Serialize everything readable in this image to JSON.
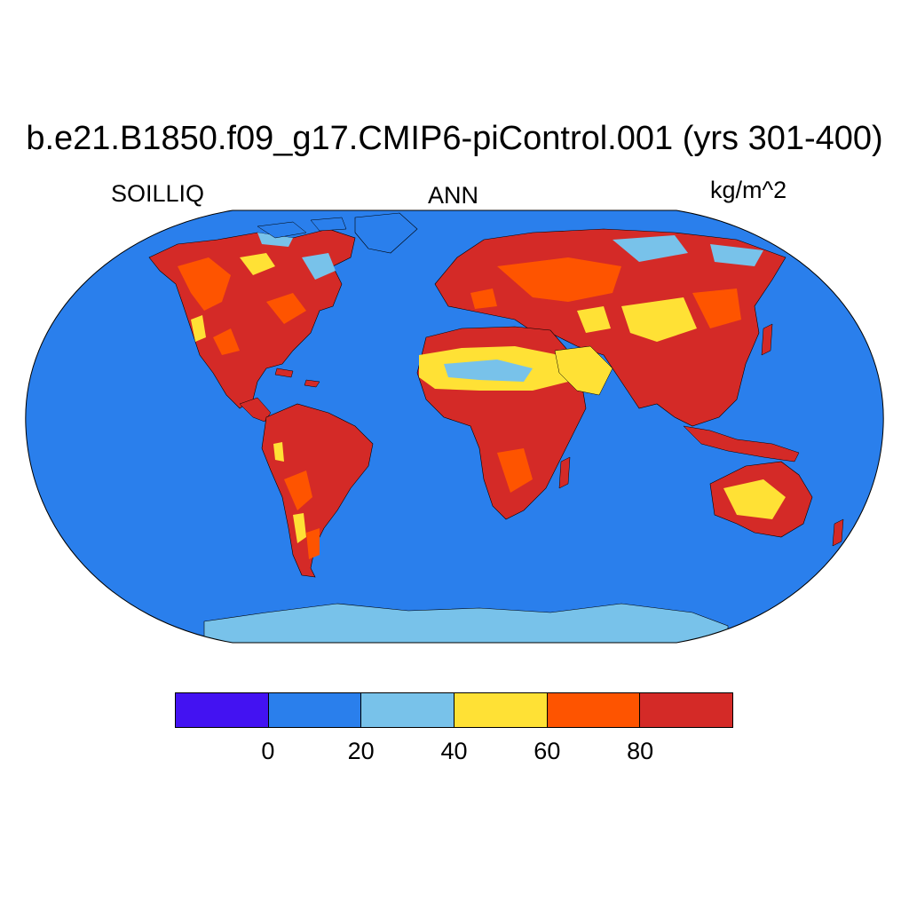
{
  "title": "b.e21.B1850.f09_g17.CMIP6-piControl.001 (yrs 301-400)",
  "subtitle_left": "SOILLIQ",
  "subtitle_center": "ANN",
  "subtitle_right": "kg/m^2",
  "map": {
    "projection": "robinson",
    "ocean_color": "#2a7fec",
    "coastline_color": "#000000"
  },
  "colorbar": {
    "colors": [
      "#4312f2",
      "#2a7fec",
      "#78c2ea",
      "#ffe135",
      "#fe5400",
      "#d42a27"
    ],
    "tick_labels": [
      "0",
      "20",
      "40",
      "60",
      "80"
    ],
    "levels": [
      0,
      20,
      40,
      60,
      80
    ]
  }
}
